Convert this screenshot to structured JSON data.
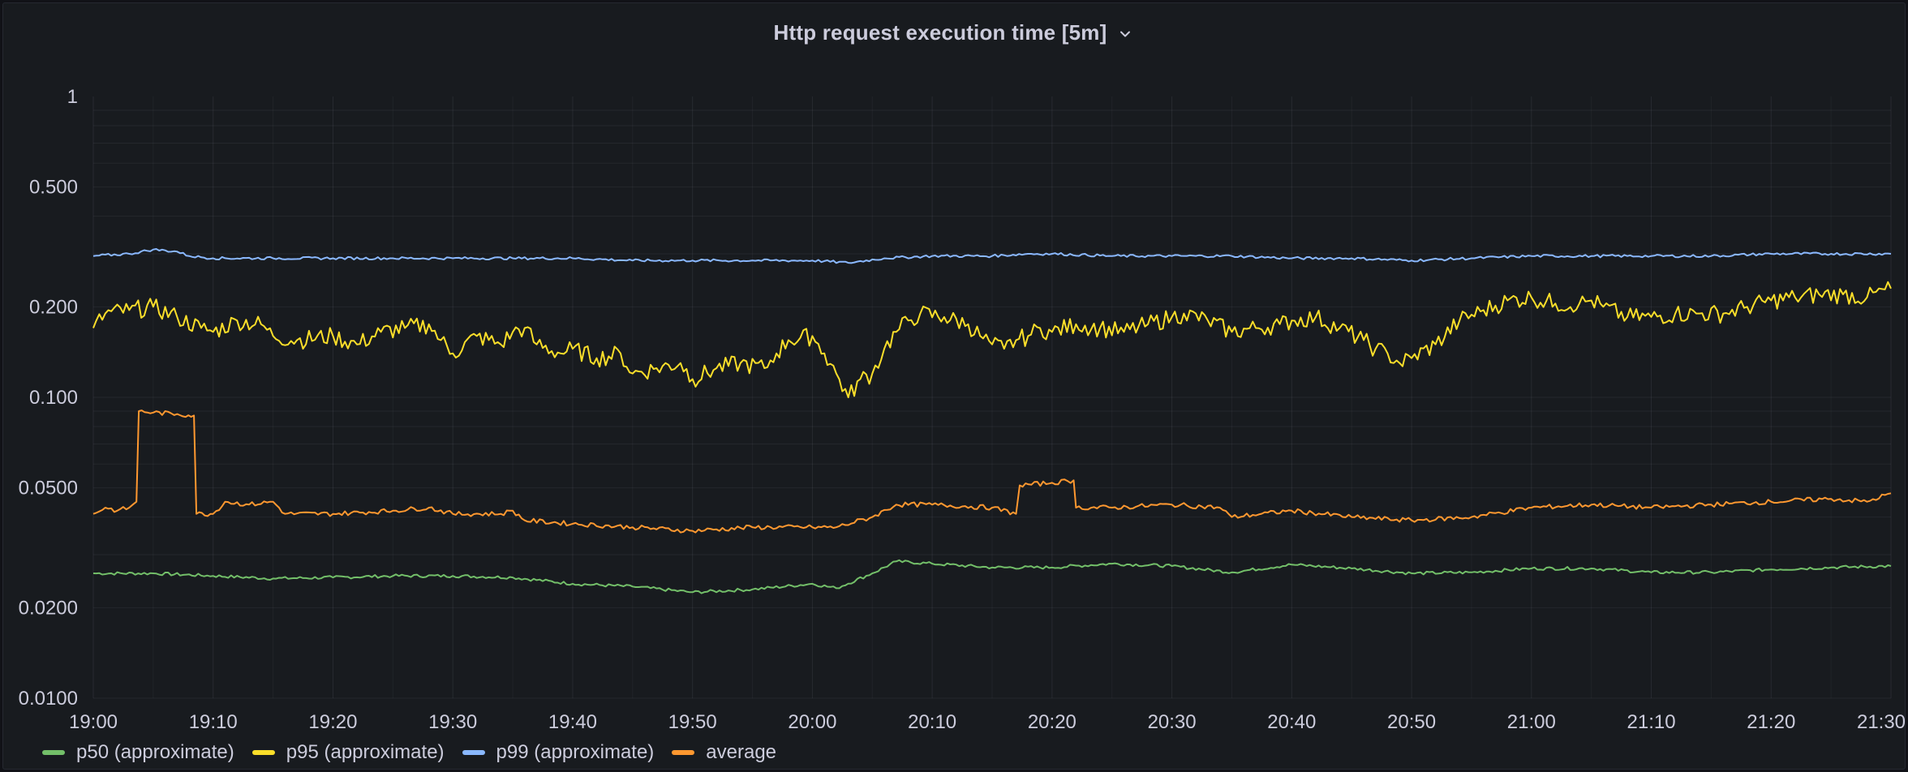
{
  "panel": {
    "title": "Http request execution time [5m]"
  },
  "chart_data": {
    "type": "line",
    "y_scale": "log10",
    "ylim": [
      0.01,
      1
    ],
    "y_ticks": [
      {
        "value": 1,
        "label": "1"
      },
      {
        "value": 0.5,
        "label": "0.500"
      },
      {
        "value": 0.2,
        "label": "0.200"
      },
      {
        "value": 0.1,
        "label": "0.100"
      },
      {
        "value": 0.05,
        "label": "0.0500"
      },
      {
        "value": 0.02,
        "label": "0.0200"
      },
      {
        "value": 0.01,
        "label": "0.0100"
      }
    ],
    "xlim": [
      "19:00",
      "21:30"
    ],
    "x_ticks": [
      "19:00",
      "19:10",
      "19:20",
      "19:30",
      "19:40",
      "19:50",
      "20:00",
      "20:10",
      "20:20",
      "20:30",
      "20:40",
      "20:50",
      "21:00",
      "21:10",
      "21:20",
      "21:30"
    ],
    "grid": true,
    "legend_position": "bottom-left",
    "series": [
      {
        "name": "p50 (approximate)",
        "color": "#73bf69",
        "points": [
          [
            "19:00",
            0.026
          ],
          [
            "19:05",
            0.026
          ],
          [
            "19:10",
            0.0255
          ],
          [
            "19:15",
            0.025
          ],
          [
            "19:20",
            0.0252
          ],
          [
            "19:25",
            0.0255
          ],
          [
            "19:30",
            0.0255
          ],
          [
            "19:35",
            0.0252
          ],
          [
            "19:40",
            0.024
          ],
          [
            "19:45",
            0.0235
          ],
          [
            "19:50",
            0.0225
          ],
          [
            "19:55",
            0.023
          ],
          [
            "20:00",
            0.024
          ],
          [
            "20:02",
            0.0232
          ],
          [
            "20:05",
            0.026
          ],
          [
            "20:07",
            0.0285
          ],
          [
            "20:10",
            0.028
          ],
          [
            "20:15",
            0.0272
          ],
          [
            "20:20",
            0.0272
          ],
          [
            "20:25",
            0.028
          ],
          [
            "20:30",
            0.0275
          ],
          [
            "20:35",
            0.0262
          ],
          [
            "20:40",
            0.0278
          ],
          [
            "20:45",
            0.027
          ],
          [
            "20:50",
            0.026
          ],
          [
            "20:55",
            0.0262
          ],
          [
            "21:00",
            0.027
          ],
          [
            "21:05",
            0.027
          ],
          [
            "21:10",
            0.0262
          ],
          [
            "21:15",
            0.0262
          ],
          [
            "21:20",
            0.0268
          ],
          [
            "21:25",
            0.0272
          ],
          [
            "21:30",
            0.0275
          ]
        ]
      },
      {
        "name": "p95 (approximate)",
        "color": "#fade2a",
        "points": [
          [
            "19:00",
            0.17
          ],
          [
            "19:01",
            0.19
          ],
          [
            "19:03",
            0.195
          ],
          [
            "19:05",
            0.2
          ],
          [
            "19:07",
            0.185
          ],
          [
            "19:09",
            0.17
          ],
          [
            "19:10",
            0.165
          ],
          [
            "19:12",
            0.18
          ],
          [
            "19:14",
            0.175
          ],
          [
            "19:15",
            0.16
          ],
          [
            "19:17",
            0.155
          ],
          [
            "19:20",
            0.16
          ],
          [
            "19:22",
            0.15
          ],
          [
            "19:24",
            0.165
          ],
          [
            "19:26",
            0.17
          ],
          [
            "19:28",
            0.175
          ],
          [
            "19:29",
            0.155
          ],
          [
            "19:30",
            0.14
          ],
          [
            "19:32",
            0.16
          ],
          [
            "19:34",
            0.15
          ],
          [
            "19:35",
            0.165
          ],
          [
            "19:36",
            0.17
          ],
          [
            "19:37",
            0.15
          ],
          [
            "19:39",
            0.14
          ],
          [
            "19:40",
            0.145
          ],
          [
            "19:42",
            0.135
          ],
          [
            "19:44",
            0.14
          ],
          [
            "19:45",
            0.12
          ],
          [
            "19:47",
            0.125
          ],
          [
            "19:49",
            0.13
          ],
          [
            "19:50",
            0.115
          ],
          [
            "19:52",
            0.125
          ],
          [
            "19:54",
            0.13
          ],
          [
            "19:56",
            0.125
          ],
          [
            "19:57",
            0.14
          ],
          [
            "19:58",
            0.155
          ],
          [
            "20:00",
            0.16
          ],
          [
            "20:01",
            0.14
          ],
          [
            "20:02",
            0.12
          ],
          [
            "20:03",
            0.1
          ],
          [
            "20:04",
            0.115
          ],
          [
            "20:05",
            0.12
          ],
          [
            "20:06",
            0.145
          ],
          [
            "20:07",
            0.165
          ],
          [
            "20:08",
            0.18
          ],
          [
            "20:09",
            0.19
          ],
          [
            "20:11",
            0.185
          ],
          [
            "20:13",
            0.175
          ],
          [
            "20:14",
            0.16
          ],
          [
            "20:15",
            0.15
          ],
          [
            "20:16",
            0.145
          ],
          [
            "20:17",
            0.155
          ],
          [
            "20:18",
            0.16
          ],
          [
            "20:19",
            0.17
          ],
          [
            "20:20",
            0.165
          ],
          [
            "20:22",
            0.175
          ],
          [
            "20:24",
            0.17
          ],
          [
            "20:26",
            0.165
          ],
          [
            "20:28",
            0.175
          ],
          [
            "20:30",
            0.185
          ],
          [
            "20:31",
            0.19
          ],
          [
            "20:33",
            0.18
          ],
          [
            "20:35",
            0.165
          ],
          [
            "20:37",
            0.17
          ],
          [
            "20:39",
            0.175
          ],
          [
            "20:40",
            0.18
          ],
          [
            "20:42",
            0.185
          ],
          [
            "20:44",
            0.17
          ],
          [
            "20:46",
            0.155
          ],
          [
            "20:47",
            0.145
          ],
          [
            "20:48",
            0.14
          ],
          [
            "20:49",
            0.13
          ],
          [
            "20:50",
            0.135
          ],
          [
            "20:52",
            0.15
          ],
          [
            "20:54",
            0.18
          ],
          [
            "20:56",
            0.195
          ],
          [
            "20:58",
            0.21
          ],
          [
            "21:00",
            0.215
          ],
          [
            "21:02",
            0.205
          ],
          [
            "21:04",
            0.205
          ],
          [
            "21:05",
            0.21
          ],
          [
            "21:06",
            0.2
          ],
          [
            "21:08",
            0.185
          ],
          [
            "21:10",
            0.185
          ],
          [
            "21:12",
            0.19
          ],
          [
            "21:14",
            0.19
          ],
          [
            "21:16",
            0.19
          ],
          [
            "21:18",
            0.2
          ],
          [
            "21:20",
            0.21
          ],
          [
            "21:22",
            0.215
          ],
          [
            "21:24",
            0.22
          ],
          [
            "21:26",
            0.22
          ],
          [
            "21:28",
            0.215
          ],
          [
            "21:30",
            0.23
          ]
        ]
      },
      {
        "name": "p99 (approximate)",
        "color": "#8ab8ff",
        "points": [
          [
            "19:00",
            0.295
          ],
          [
            "19:03",
            0.3
          ],
          [
            "19:05",
            0.31
          ],
          [
            "19:07",
            0.305
          ],
          [
            "19:08",
            0.295
          ],
          [
            "19:10",
            0.29
          ],
          [
            "19:15",
            0.29
          ],
          [
            "19:20",
            0.29
          ],
          [
            "19:25",
            0.29
          ],
          [
            "19:30",
            0.29
          ],
          [
            "19:35",
            0.29
          ],
          [
            "19:40",
            0.29
          ],
          [
            "19:45",
            0.285
          ],
          [
            "19:50",
            0.285
          ],
          [
            "19:55",
            0.285
          ],
          [
            "20:00",
            0.285
          ],
          [
            "20:03",
            0.28
          ],
          [
            "20:06",
            0.29
          ],
          [
            "20:10",
            0.295
          ],
          [
            "20:15",
            0.295
          ],
          [
            "20:18",
            0.3
          ],
          [
            "20:20",
            0.3
          ],
          [
            "20:25",
            0.295
          ],
          [
            "20:30",
            0.295
          ],
          [
            "20:35",
            0.295
          ],
          [
            "20:40",
            0.29
          ],
          [
            "20:45",
            0.29
          ],
          [
            "20:50",
            0.285
          ],
          [
            "20:55",
            0.29
          ],
          [
            "21:00",
            0.295
          ],
          [
            "21:05",
            0.295
          ],
          [
            "21:10",
            0.295
          ],
          [
            "21:15",
            0.295
          ],
          [
            "21:20",
            0.3
          ],
          [
            "21:25",
            0.3
          ],
          [
            "21:30",
            0.3
          ]
        ]
      },
      {
        "name": "average",
        "color": "#ff9830",
        "points": [
          [
            "19:00",
            0.041
          ],
          [
            "19:01",
            0.043
          ],
          [
            "19:02",
            0.042
          ],
          [
            "19:03",
            0.043
          ],
          [
            "19:03.6",
            0.045
          ],
          [
            "19:03.8",
            0.09
          ],
          [
            "19:05",
            0.089
          ],
          [
            "19:07",
            0.088
          ],
          [
            "19:08.4",
            0.087
          ],
          [
            "19:08.6",
            0.041
          ],
          [
            "19:10",
            0.041
          ],
          [
            "19:11",
            0.045
          ],
          [
            "19:13",
            0.044
          ],
          [
            "19:15",
            0.045
          ],
          [
            "19:16",
            0.041
          ],
          [
            "19:20",
            0.041
          ],
          [
            "19:25",
            0.042
          ],
          [
            "19:28",
            0.043
          ],
          [
            "19:30",
            0.041
          ],
          [
            "19:34",
            0.041
          ],
          [
            "19:35",
            0.042
          ],
          [
            "19:36",
            0.039
          ],
          [
            "19:40",
            0.038
          ],
          [
            "19:45",
            0.037
          ],
          [
            "19:50",
            0.036
          ],
          [
            "19:55",
            0.037
          ],
          [
            "20:00",
            0.037
          ],
          [
            "20:02",
            0.037
          ],
          [
            "20:05",
            0.04
          ],
          [
            "20:07",
            0.044
          ],
          [
            "20:10",
            0.044
          ],
          [
            "20:15",
            0.043
          ],
          [
            "20:17",
            0.041
          ],
          [
            "20:17.3",
            0.051
          ],
          [
            "20:20",
            0.052
          ],
          [
            "20:21.8",
            0.053
          ],
          [
            "20:22",
            0.043
          ],
          [
            "20:25",
            0.043
          ],
          [
            "20:30",
            0.044
          ],
          [
            "20:34",
            0.043
          ],
          [
            "20:35",
            0.04
          ],
          [
            "20:40",
            0.042
          ],
          [
            "20:45",
            0.04
          ],
          [
            "20:50",
            0.039
          ],
          [
            "20:55",
            0.04
          ],
          [
            "21:00",
            0.043
          ],
          [
            "21:05",
            0.044
          ],
          [
            "21:10",
            0.043
          ],
          [
            "21:15",
            0.044
          ],
          [
            "21:20",
            0.045
          ],
          [
            "21:25",
            0.046
          ],
          [
            "21:28",
            0.045
          ],
          [
            "21:30",
            0.048
          ]
        ]
      }
    ]
  }
}
